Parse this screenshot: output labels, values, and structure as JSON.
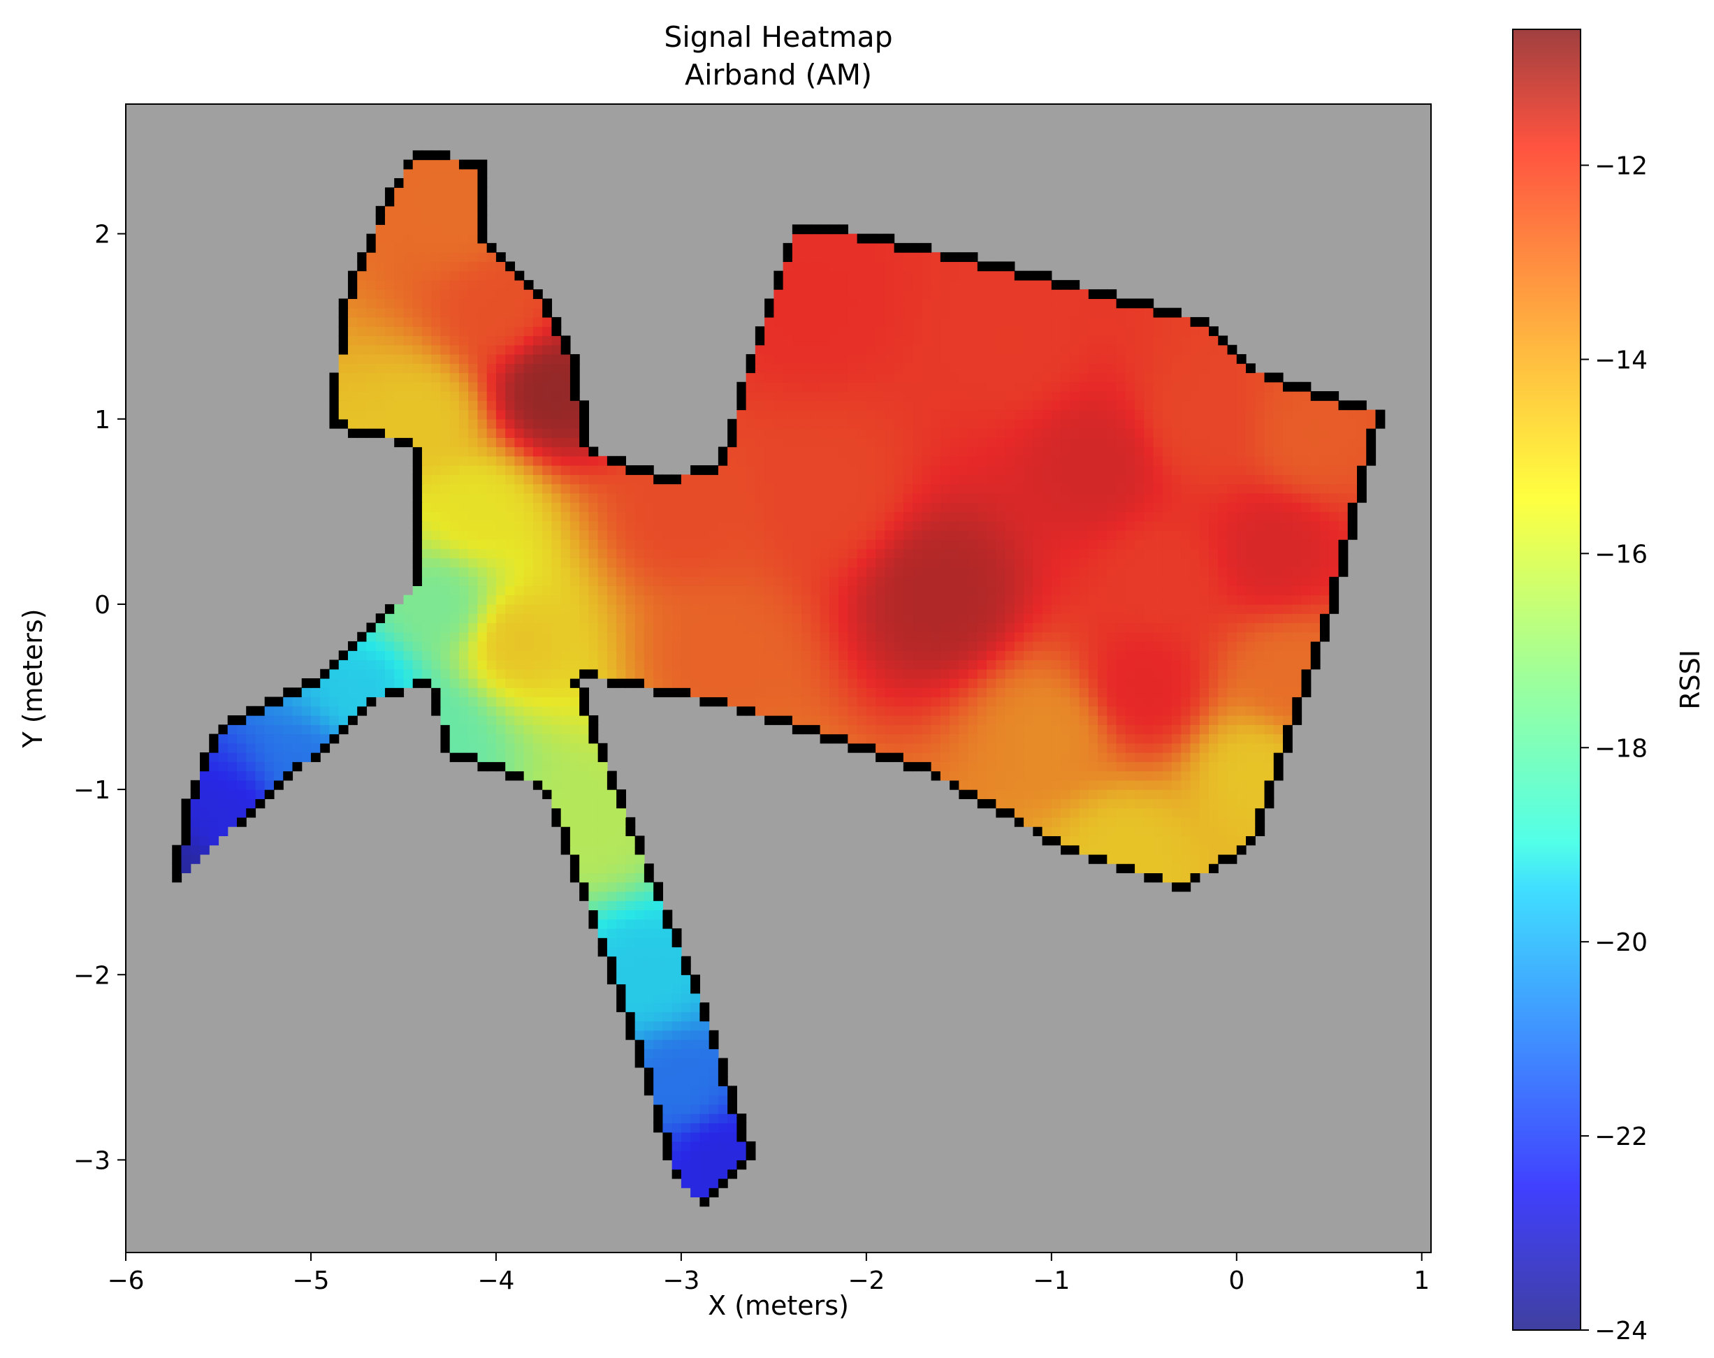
{
  "chart_data": {
    "type": "heatmap",
    "title": "Signal Heatmap",
    "subtitle": "Airband (AM)",
    "xlabel": "X (meters)",
    "ylabel": "Y (meters)",
    "colorbar_label": "RSSI",
    "xlim": [
      -6,
      1.05
    ],
    "ylim": [
      -3.5,
      2.7
    ],
    "x_ticks": [
      -6,
      -5,
      -4,
      -3,
      -2,
      -1,
      0,
      1
    ],
    "x_tick_labels": [
      "−6",
      "−5",
      "−4",
      "−3",
      "−2",
      "−1",
      "0",
      "1"
    ],
    "y_ticks": [
      -3,
      -2,
      -1,
      0,
      1,
      2
    ],
    "y_tick_labels": [
      "−3",
      "−2",
      "−1",
      "0",
      "1",
      "2"
    ],
    "clim": [
      -24,
      -10.6
    ],
    "colorbar_ticks": [
      -24,
      -22,
      -20,
      -18,
      -16,
      -14,
      -12
    ],
    "colorbar_tick_labels": [
      "−24",
      "−22",
      "−20",
      "−18",
      "−16",
      "−14",
      "−12"
    ],
    "colormap": "jet",
    "grid": false,
    "background_color": "#a0a0a0",
    "wall_color": "#000000",
    "hotspots": [
      {
        "x": -1.6,
        "y": 0.05,
        "rssi": -11.3
      },
      {
        "x": -3.7,
        "y": 1.15,
        "rssi": -10.8
      },
      {
        "x": -0.75,
        "y": 0.75,
        "rssi": -11.9
      },
      {
        "x": 0.2,
        "y": 0.3,
        "rssi": -12.0
      },
      {
        "x": -0.5,
        "y": -0.45,
        "rssi": -12.2
      },
      {
        "x": -2.3,
        "y": 1.6,
        "rssi": -12.4
      }
    ],
    "sample_points": [
      {
        "x": -5.7,
        "y": -1.5,
        "rssi": -23.6
      },
      {
        "x": -5.4,
        "y": -1.2,
        "rssi": -22.5
      },
      {
        "x": -5.0,
        "y": -0.9,
        "rssi": -21.0
      },
      {
        "x": -4.7,
        "y": -0.5,
        "rssi": -19.5
      },
      {
        "x": -4.3,
        "y": 0.0,
        "rssi": -17.5
      },
      {
        "x": -4.3,
        "y": -0.7,
        "rssi": -17.8
      },
      {
        "x": -4.1,
        "y": 0.5,
        "rssi": -15.5
      },
      {
        "x": -4.4,
        "y": 1.0,
        "rssi": -15.0
      },
      {
        "x": -3.9,
        "y": -0.2,
        "rssi": -15.0
      },
      {
        "x": -3.5,
        "y": -1.2,
        "rssi": -16.5
      },
      {
        "x": -3.2,
        "y": -2.0,
        "rssi": -19.5
      },
      {
        "x": -3.0,
        "y": -2.6,
        "rssi": -21.0
      },
      {
        "x": -2.8,
        "y": -3.0,
        "rssi": -22.5
      },
      {
        "x": -4.0,
        "y": 1.6,
        "rssi": -13.0
      },
      {
        "x": -4.2,
        "y": 2.1,
        "rssi": -13.5
      },
      {
        "x": -3.0,
        "y": 0.5,
        "rssi": -12.9
      },
      {
        "x": -2.2,
        "y": 0.6,
        "rssi": -12.8
      },
      {
        "x": -1.2,
        "y": 1.4,
        "rssi": -12.6
      },
      {
        "x": -0.2,
        "y": 1.0,
        "rssi": -12.8
      },
      {
        "x": 0.4,
        "y": 0.9,
        "rssi": -13.2
      },
      {
        "x": -2.8,
        "y": -0.3,
        "rssi": -13.3
      },
      {
        "x": -1.0,
        "y": -0.7,
        "rssi": -14.0
      },
      {
        "x": 0.1,
        "y": -0.9,
        "rssi": -15.0
      },
      {
        "x": -0.6,
        "y": -1.35,
        "rssi": -15.0
      },
      {
        "x": -0.4,
        "y": 0.15,
        "rssi": -12.6
      },
      {
        "x": 0.3,
        "y": -0.4,
        "rssi": -13.5
      }
    ],
    "floor_plan_outline": [
      [
        -4.9,
        0.95
      ],
      [
        -4.85,
        1.6
      ],
      [
        -4.6,
        2.2
      ],
      [
        -4.45,
        2.45
      ],
      [
        -4.05,
        2.4
      ],
      [
        -4.05,
        1.95
      ],
      [
        -3.7,
        1.6
      ],
      [
        -3.55,
        1.3
      ],
      [
        -3.5,
        0.85
      ],
      [
        -3.1,
        0.7
      ],
      [
        -2.8,
        0.75
      ],
      [
        -2.65,
        1.3
      ],
      [
        -2.4,
        2.05
      ],
      [
        -2.2,
        2.05
      ],
      [
        -1.3,
        1.85
      ],
      [
        -0.2,
        1.55
      ],
      [
        0.15,
        1.25
      ],
      [
        0.8,
        1.05
      ],
      [
        0.55,
        0.05
      ],
      [
        0.2,
        -1.0
      ],
      [
        0.1,
        -1.3
      ],
      [
        -0.3,
        -1.55
      ],
      [
        -0.9,
        -1.35
      ],
      [
        -1.7,
        -0.9
      ],
      [
        -2.8,
        -0.55
      ],
      [
        -3.55,
        -0.4
      ],
      [
        -3.35,
        -0.95
      ],
      [
        -2.85,
        -2.2
      ],
      [
        -2.6,
        -3.0
      ],
      [
        -2.9,
        -3.25
      ],
      [
        -3.05,
        -3.1
      ],
      [
        -3.3,
        -2.25
      ],
      [
        -3.75,
        -1.0
      ],
      [
        -4.3,
        -0.8
      ],
      [
        -4.35,
        -0.45
      ],
      [
        -4.6,
        -0.5
      ],
      [
        -5.4,
        -1.2
      ],
      [
        -5.75,
        -1.55
      ],
      [
        -5.7,
        -1.1
      ],
      [
        -5.5,
        -0.65
      ],
      [
        -4.9,
        -0.35
      ],
      [
        -4.45,
        0.1
      ],
      [
        -4.45,
        0.85
      ]
    ]
  }
}
